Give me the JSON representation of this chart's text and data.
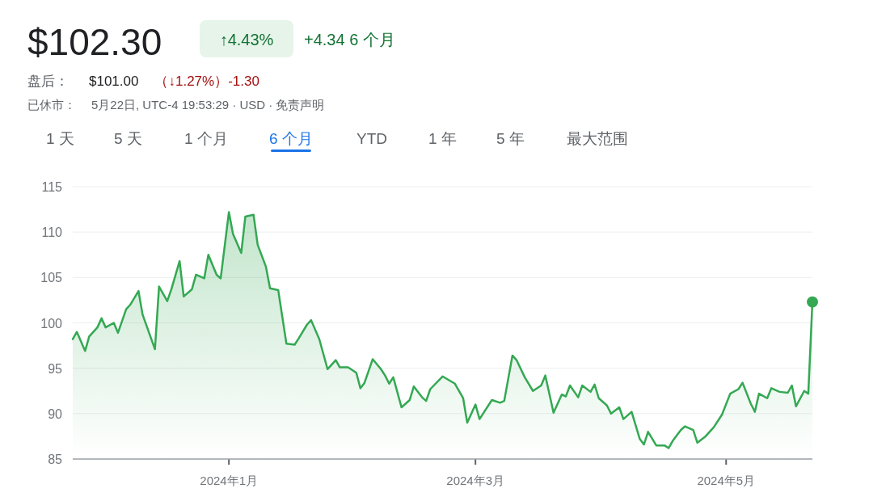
{
  "chart_data": {
    "type": "area",
    "title": "$102.30",
    "annotations": [
      "↑4.43%",
      "+4.34 6 个月",
      "盘后：",
      "$101.00",
      "（↓1.27%）",
      "-1.30",
      "已休市：",
      "5月22日, UTC-4 19:53:29 · USD · 免责声明",
      "1 天",
      "5 天",
      "1 个月",
      "6 个月",
      "YTD",
      "1 年",
      "5 年",
      "最大范围"
    ],
    "xlim": [
      "2023-11-24",
      "2024-05-22"
    ],
    "xticks": [
      {
        "value": "2024-01-01",
        "label": "2024年1月"
      },
      {
        "value": "2024-03-01",
        "label": "2024年3月"
      },
      {
        "value": "2024-05-01",
        "label": "2024年5月"
      }
    ],
    "ylim": [
      85,
      115
    ],
    "yticks": [
      85,
      90,
      95,
      100,
      105,
      110,
      115
    ],
    "grid": "y",
    "series": [
      {
        "type": "area",
        "color": "#34a853",
        "x": [
          "2023-11-24",
          "2023-11-25",
          "2023-11-27",
          "2023-11-28",
          "2023-11-30",
          "2023-12-01",
          "2023-12-02",
          "2023-12-04",
          "2023-12-05",
          "2023-12-07",
          "2023-12-08",
          "2023-12-10",
          "2023-12-11",
          "2023-12-14",
          "2023-12-15",
          "2023-12-17",
          "2023-12-18",
          "2023-12-20",
          "2023-12-21",
          "2023-12-23",
          "2023-12-24",
          "2023-12-26",
          "2023-12-27",
          "2023-12-29",
          "2023-12-30",
          "2024-01-01",
          "2024-01-02",
          "2024-01-04",
          "2024-01-05",
          "2024-01-07",
          "2024-01-08",
          "2024-01-10",
          "2024-01-11",
          "2024-01-13",
          "2024-01-15",
          "2024-01-17",
          "2024-01-18",
          "2024-01-20",
          "2024-01-21",
          "2024-01-23",
          "2024-01-25",
          "2024-01-27",
          "2024-01-28",
          "2024-01-30",
          "2024-02-01",
          "2024-02-02",
          "2024-02-03",
          "2024-02-05",
          "2024-02-07",
          "2024-02-08",
          "2024-02-09",
          "2024-02-10",
          "2024-02-12",
          "2024-02-14",
          "2024-02-15",
          "2024-02-17",
          "2024-02-18",
          "2024-02-19",
          "2024-02-22",
          "2024-02-25",
          "2024-02-27",
          "2024-02-28",
          "2024-03-01",
          "2024-03-02",
          "2024-03-05",
          "2024-03-07",
          "2024-03-08",
          "2024-03-10",
          "2024-03-11",
          "2024-03-13",
          "2024-03-15",
          "2024-03-17",
          "2024-03-18",
          "2024-03-20",
          "2024-03-22",
          "2024-03-23",
          "2024-03-24",
          "2024-03-26",
          "2024-03-27",
          "2024-03-29",
          "2024-03-30",
          "2024-03-31",
          "2024-04-02",
          "2024-04-03",
          "2024-04-05",
          "2024-04-06",
          "2024-04-08",
          "2024-04-10",
          "2024-04-11",
          "2024-04-12",
          "2024-04-14",
          "2024-04-16",
          "2024-04-17",
          "2024-04-18",
          "2024-04-20",
          "2024-04-21",
          "2024-04-23",
          "2024-04-24",
          "2024-04-26",
          "2024-04-28",
          "2024-04-30",
          "2024-05-02",
          "2024-05-04",
          "2024-05-05",
          "2024-05-07",
          "2024-05-08",
          "2024-05-09",
          "2024-05-11",
          "2024-05-12",
          "2024-05-14",
          "2024-05-16",
          "2024-05-17",
          "2024-05-18",
          "2024-05-20",
          "2024-05-21",
          "2024-05-22"
        ],
        "values": [
          98.2,
          99.0,
          96.9,
          98.5,
          99.5,
          100.5,
          99.5,
          100.0,
          98.9,
          101.5,
          102.0,
          103.5,
          100.9,
          97.1,
          104.0,
          102.4,
          103.7,
          106.8,
          102.9,
          103.7,
          105.3,
          104.9,
          107.5,
          105.3,
          104.9,
          112.2,
          109.8,
          107.7,
          111.7,
          111.9,
          108.6,
          106.2,
          103.8,
          103.6,
          97.7,
          97.6,
          98.3,
          99.8,
          100.3,
          98.2,
          94.9,
          95.9,
          95.1,
          95.1,
          94.5,
          92.8,
          93.4,
          96.0,
          94.9,
          94.2,
          93.3,
          94.0,
          90.7,
          91.5,
          93.0,
          91.8,
          91.4,
          92.7,
          94.1,
          93.3,
          91.7,
          89.0,
          91.0,
          89.4,
          91.5,
          91.2,
          91.4,
          96.4,
          95.9,
          94.0,
          92.5,
          93.1,
          94.2,
          90.1,
          92.1,
          91.9,
          93.1,
          91.8,
          93.1,
          92.4,
          93.2,
          91.7,
          90.9,
          90.0,
          90.7,
          89.4,
          90.2,
          87.2,
          86.6,
          88.0,
          86.5,
          86.5,
          86.2,
          87.0,
          88.2,
          88.6,
          88.2,
          86.8,
          87.5,
          88.5,
          89.9,
          92.2,
          92.7,
          93.4,
          91.1,
          90.2,
          92.2,
          91.7,
          92.8,
          92.4,
          92.3,
          93.1,
          90.8,
          92.5,
          92.2,
          102.3
        ]
      },
      {
        "type": "scatter",
        "color": "#34a853",
        "x": [
          "2024-05-22"
        ],
        "values": [
          102.3
        ]
      }
    ]
  }
}
